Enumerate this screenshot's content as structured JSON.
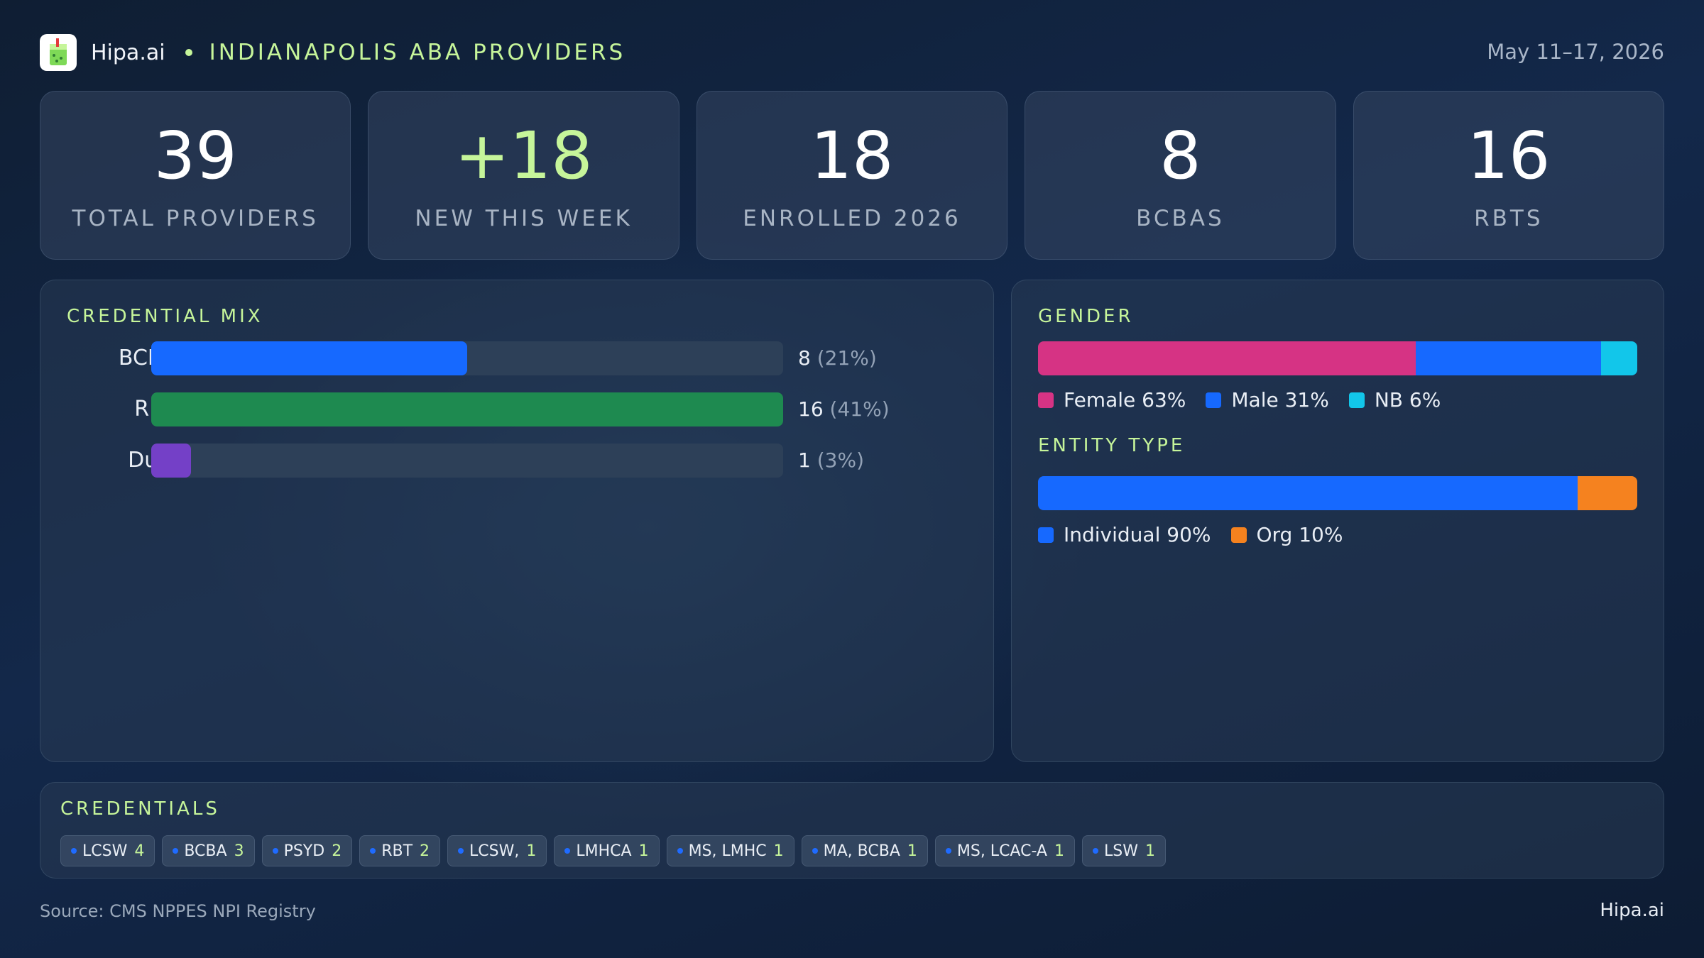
{
  "header": {
    "brand": "Hipa.ai",
    "subtitle": "INDIANAPOLIS  ABA PROVIDERS",
    "date_range": "May 11–17, 2026",
    "logo_icon": "drink-cup-icon"
  },
  "kpis": [
    {
      "value": "39",
      "label": "TOTAL  PROVIDERS"
    },
    {
      "value": "+18",
      "label": "NEW THIS WEEK"
    },
    {
      "value": "18",
      "label": "ENROLLED 2026"
    },
    {
      "value": "8",
      "label": "BCBAS"
    },
    {
      "value": "16",
      "label": "RBTS"
    }
  ],
  "credential_mix": {
    "title": "CREDENTIAL  MIX",
    "rows": [
      {
        "label": "BCBA",
        "count": "8",
        "pct": "(21%)",
        "fraction": 0.5,
        "color": "#1669ff"
      },
      {
        "label": "RBT",
        "count": "16",
        "pct": "(41%)",
        "fraction": 1.0,
        "color": "#1e8a50"
      },
      {
        "label": "Dual",
        "count": "1",
        "pct": "(3%)",
        "fraction": 0.0625,
        "color": "#7440c7"
      }
    ]
  },
  "gender": {
    "title": "GENDER",
    "segments": [
      {
        "label": "Female 63%",
        "share": 63,
        "color": "#d63384"
      },
      {
        "label": "Male 31%",
        "share": 31,
        "color": "#1669ff"
      },
      {
        "label": "NB 6%",
        "share": 6,
        "color": "#12c6ea"
      }
    ]
  },
  "entity_type": {
    "title": "ENTITY  TYPE",
    "segments": [
      {
        "label": "Individual 90%",
        "share": 90,
        "color": "#1669ff"
      },
      {
        "label": "Org 10%",
        "share": 10,
        "color": "#f5821f"
      }
    ]
  },
  "credentials": {
    "title": "CREDENTIALS",
    "chips": [
      {
        "label": "LCSW",
        "count": "4"
      },
      {
        "label": "BCBA",
        "count": "3"
      },
      {
        "label": "PSYD",
        "count": "2"
      },
      {
        "label": "RBT",
        "count": "2"
      },
      {
        "label": "LCSW,",
        "count": "1"
      },
      {
        "label": "LMHCA",
        "count": "1"
      },
      {
        "label": "MS, LMHC",
        "count": "1"
      },
      {
        "label": "MA, BCBA",
        "count": "1"
      },
      {
        "label": "MS, LCAC-A",
        "count": "1"
      },
      {
        "label": "LSW",
        "count": "1"
      }
    ]
  },
  "footer": {
    "source": "Source: CMS NPPES NPI Registry",
    "brand": "Hipa.ai"
  }
}
